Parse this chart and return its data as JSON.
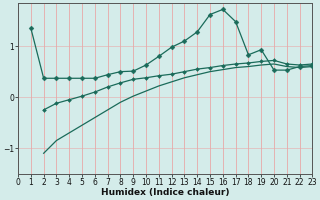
{
  "xlabel": "Humidex (Indice chaleur)",
  "background_color": "#d4ecea",
  "grid_color_x": "#e8a8a8",
  "grid_color_y": "#c8dada",
  "line_color": "#1a6b5a",
  "xlim": [
    0,
    23
  ],
  "ylim": [
    -1.5,
    1.85
  ],
  "yticks": [
    -1,
    0,
    1
  ],
  "xticks": [
    0,
    1,
    2,
    3,
    4,
    5,
    6,
    7,
    8,
    9,
    10,
    11,
    12,
    13,
    14,
    15,
    16,
    17,
    18,
    19,
    20,
    21,
    22,
    23
  ],
  "series1_x": [
    1,
    2,
    3,
    4,
    5,
    6,
    7,
    8,
    9,
    10,
    11,
    12,
    13,
    14,
    15,
    16,
    17,
    18,
    19,
    20,
    21,
    22,
    23
  ],
  "series1_y": [
    1.35,
    0.37,
    0.37,
    0.37,
    0.37,
    0.37,
    0.44,
    0.5,
    0.51,
    0.63,
    0.8,
    0.98,
    1.1,
    1.28,
    1.62,
    1.72,
    1.48,
    0.83,
    0.93,
    0.53,
    0.53,
    0.6,
    0.62
  ],
  "series2_x": [
    2,
    3,
    4,
    5,
    6,
    7,
    8,
    9,
    10,
    11,
    12,
    13,
    14,
    15,
    16,
    17,
    18,
    19,
    20,
    21,
    22,
    23
  ],
  "series2_y": [
    -0.25,
    -0.12,
    -0.05,
    0.02,
    0.1,
    0.2,
    0.28,
    0.35,
    0.38,
    0.42,
    0.45,
    0.5,
    0.55,
    0.58,
    0.62,
    0.65,
    0.67,
    0.7,
    0.72,
    0.65,
    0.63,
    0.65
  ],
  "series3_x": [
    2,
    3,
    4,
    5,
    6,
    7,
    8,
    9,
    10,
    11,
    12,
    13,
    14,
    15,
    16,
    17,
    18,
    19,
    20,
    21,
    22,
    23
  ],
  "series3_y": [
    -1.1,
    -0.85,
    -0.7,
    -0.55,
    -0.4,
    -0.25,
    -0.1,
    0.02,
    0.12,
    0.22,
    0.3,
    0.38,
    0.44,
    0.5,
    0.54,
    0.58,
    0.6,
    0.63,
    0.65,
    0.6,
    0.58,
    0.6
  ]
}
